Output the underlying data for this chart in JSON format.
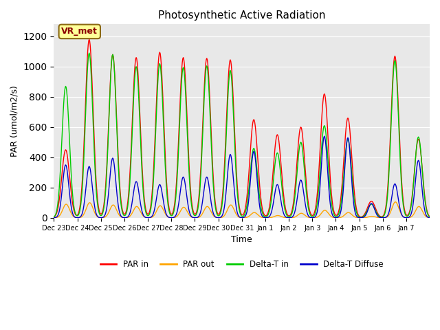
{
  "title": "Photosynthetic Active Radiation",
  "xlabel": "Time",
  "ylabel": "PAR (umol/m2/s)",
  "ylim": [
    0,
    1280
  ],
  "yticks": [
    0,
    200,
    400,
    600,
    800,
    1000,
    1200
  ],
  "legend_labels": [
    "PAR in",
    "PAR out",
    "Delta-T in",
    "Delta-T Diffuse"
  ],
  "legend_colors": [
    "#ff0000",
    "#ffa500",
    "#00cc00",
    "#0000cc"
  ],
  "annotation_text": "VR_met",
  "annotation_color": "#8b0000",
  "annotation_bg": "#ffff99",
  "bg_color": "#e8e8e8",
  "fig_bg": "#ffffff",
  "x_tick_labels": [
    "Dec 23",
    "Dec 24",
    "Dec 25",
    "Dec 26",
    "Dec 27",
    "Dec 28",
    "Dec 29",
    "Dec 30",
    "Dec 31",
    "Jan 1",
    "Jan 2",
    "Jan 3",
    "Jan 4",
    "Jan 5",
    "Jan 6",
    "Jan 7"
  ],
  "day_peaks_par_in": [
    450,
    1180,
    1080,
    1060,
    1095,
    1060,
    1055,
    1045,
    650,
    550,
    600,
    820,
    660,
    110,
    1070,
    520
  ],
  "day_peaks_par_out": [
    90,
    100,
    85,
    75,
    80,
    70,
    75,
    85,
    35,
    15,
    30,
    50,
    35,
    10,
    105,
    75
  ],
  "day_peaks_delta_in": [
    870,
    1090,
    1080,
    1000,
    1020,
    995,
    1005,
    975,
    460,
    430,
    500,
    610,
    520,
    90,
    1040,
    535
  ],
  "day_peaks_delta_dif": [
    350,
    340,
    395,
    240,
    220,
    270,
    270,
    420,
    440,
    220,
    250,
    540,
    530,
    95,
    225,
    380
  ]
}
